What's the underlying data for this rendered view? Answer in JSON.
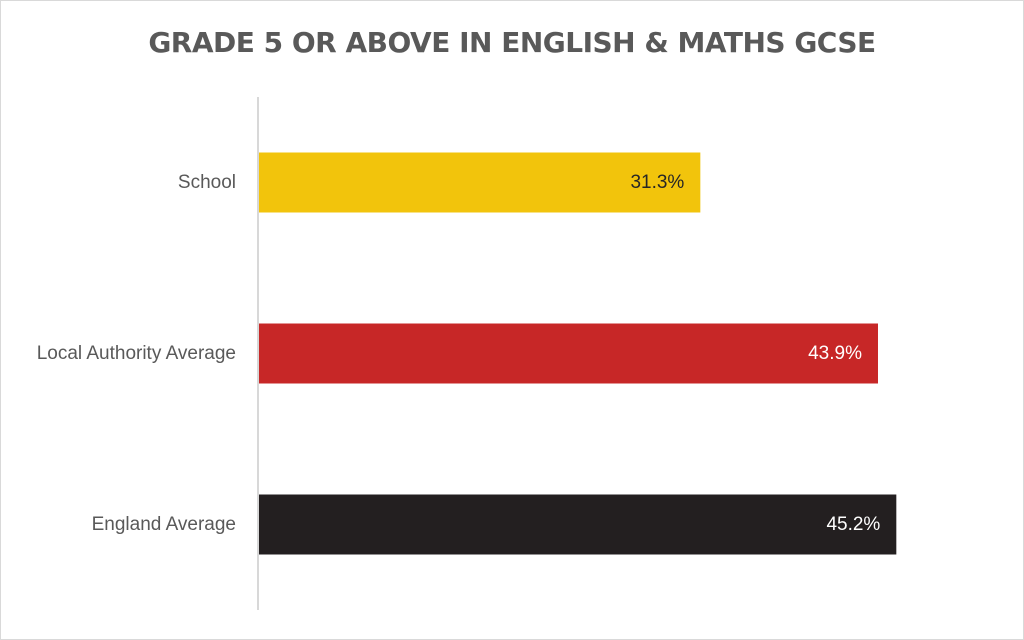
{
  "chart_data": {
    "type": "bar",
    "orientation": "horizontal",
    "title": "GRADE 5 OR ABOVE IN ENGLISH & MATHS GCSE",
    "categories": [
      "School",
      "Local Authority Average",
      "England Average"
    ],
    "values": [
      31.3,
      43.9,
      45.2
    ],
    "value_labels": [
      "31.3%",
      "43.9%",
      "45.2%"
    ],
    "unit": "%",
    "xlim": [
      0,
      50
    ],
    "grid": false,
    "legend": "none",
    "bar_colors": [
      "#f2c40c",
      "#c72727",
      "#231f20"
    ],
    "label_colors": [
      "#262626",
      "#ffffff",
      "#ffffff"
    ]
  },
  "colors": {
    "title": "#595959",
    "axis_line": "#bfbfbf",
    "category_text": "#595959"
  }
}
